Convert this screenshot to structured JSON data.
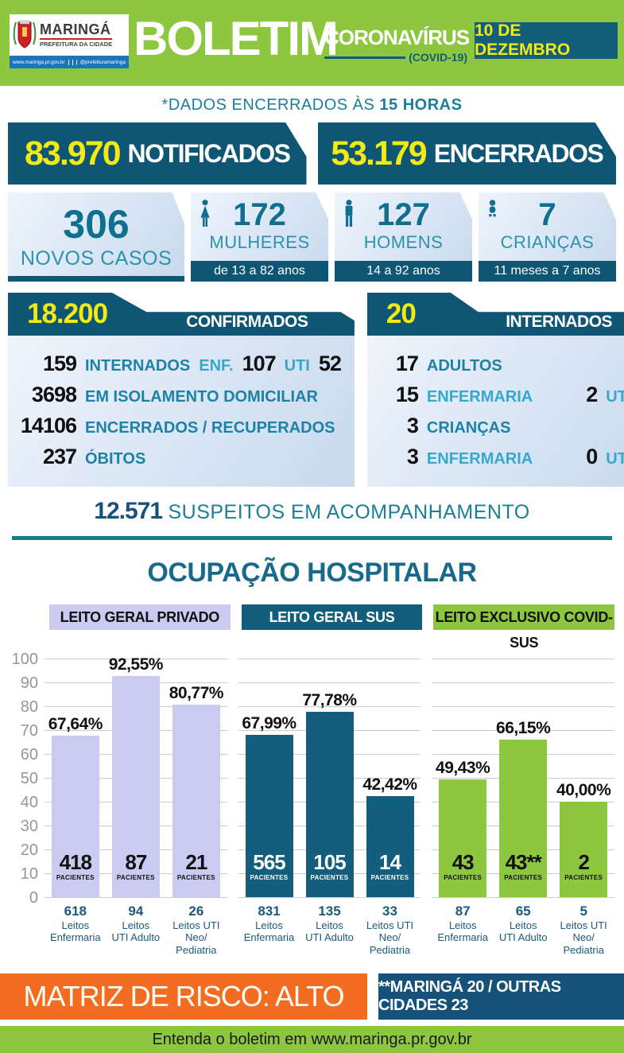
{
  "header": {
    "logo_title": "MARINGÁ",
    "logo_subtitle": "PREFEITURA DA CIDADE",
    "logo_url": "www.maringa.pr.gov.br",
    "logo_social": "@prefeituramaringa",
    "title": "BOLETIM",
    "subtitle": "CORONAVÍRUS",
    "subtitle_note": "(COVID-19)",
    "date": "10 DE DEZEMBRO"
  },
  "closing_note": {
    "prefix": "*DADOS ENCERRADOS ÀS ",
    "time": "15 HORAS"
  },
  "totals": [
    {
      "value": "83.970",
      "label": "NOTIFICADOS"
    },
    {
      "value": "53.179",
      "label": "ENCERRADOS"
    }
  ],
  "new_cases": {
    "value": "306",
    "label": "NOVOS CASOS"
  },
  "demographics": [
    {
      "icon": "woman-icon",
      "value": "172",
      "label": "MULHERES",
      "range": "de 13 a 82 anos"
    },
    {
      "icon": "man-icon",
      "value": "127",
      "label": "HOMENS",
      "range": "14 a 92 anos"
    },
    {
      "icon": "baby-icon",
      "value": "7",
      "label": "CRIANÇAS",
      "range": "11 meses a 7 anos"
    }
  ],
  "confirmed_panel": {
    "value": "18.200",
    "title": "CONFIRMADOS",
    "rows": [
      [
        {
          "t": "159",
          "c": "num first"
        },
        {
          "t": "INTERNADOS",
          "c": "dark"
        },
        {
          "t": "ENF.",
          "c": "light"
        },
        {
          "t": "107",
          "c": "num"
        },
        {
          "t": "UTI",
          "c": "light"
        },
        {
          "t": "52",
          "c": "num"
        }
      ],
      [
        {
          "t": "3698",
          "c": "num first"
        },
        {
          "t": "EM ISOLAMENTO DOMICILIAR",
          "c": "dark"
        }
      ],
      [
        {
          "t": "14106",
          "c": "num first"
        },
        {
          "t": "ENCERRADOS / RECUPERADOS",
          "c": "dark"
        }
      ],
      [
        {
          "t": "237",
          "c": "num first"
        },
        {
          "t": "ÓBITOS",
          "c": "dark"
        }
      ]
    ]
  },
  "suspects_panel": {
    "value": "20",
    "title": "SUSPEITOS INTERNADOS",
    "rows": [
      [
        {
          "t": "17",
          "c": "num first"
        },
        {
          "t": "ADULTOS",
          "c": "dark"
        }
      ],
      [
        {
          "t": "15",
          "c": "num first"
        },
        {
          "t": "ENFERMARIA",
          "c": "light"
        },
        {
          "t": "2",
          "c": "num push"
        },
        {
          "t": "UTI",
          "c": "light"
        }
      ],
      [
        {
          "t": "3",
          "c": "num first"
        },
        {
          "t": "CRIANÇAS",
          "c": "dark"
        }
      ],
      [
        {
          "t": "3",
          "c": "num first"
        },
        {
          "t": "ENFERMARIA",
          "c": "light"
        },
        {
          "t": "0",
          "c": "num push"
        },
        {
          "t": "UTI",
          "c": "light"
        }
      ]
    ]
  },
  "monitoring": {
    "value": "12.571",
    "label": " SUSPEITOS EM ACOMPANHAMENTO"
  },
  "chart_title": "OCUPAÇÃO HOSPITALAR",
  "chart_data": {
    "type": "bar",
    "title": "OCUPAÇÃO HOSPITALAR",
    "ylim": [
      0,
      100
    ],
    "ytick_step": 10,
    "grid": true,
    "patients_word": "PACIENTES",
    "groups": [
      {
        "legend": "LEITO GERAL PRIVADO",
        "bar_color": "#c9cbf0",
        "legend_text_color": "#111111",
        "patients_text_color": "#111111",
        "bars": [
          {
            "percent": 67.64,
            "percent_label": "67,64%",
            "patients": "418",
            "beds": [
              "618",
              "Leitos",
              "Enfermaria"
            ]
          },
          {
            "percent": 92.55,
            "percent_label": "92,55%",
            "patients": "87",
            "beds": [
              "94",
              "Leitos",
              "UTI Adulto"
            ]
          },
          {
            "percent": 80.77,
            "percent_label": "80,77%",
            "patients": "21",
            "beds": [
              "26",
              "Leitos UTI",
              "Neo/",
              "Pediatria"
            ]
          }
        ]
      },
      {
        "legend": "LEITO GERAL SUS",
        "bar_color": "#135e7c",
        "legend_text_color": "#ffffff",
        "patients_text_color": "#ffffff",
        "bars": [
          {
            "percent": 67.99,
            "percent_label": "67,99%",
            "patients": "565",
            "beds": [
              "831",
              "Leitos",
              "Enfermaria"
            ]
          },
          {
            "percent": 77.78,
            "percent_label": "77,78%",
            "patients": "105",
            "beds": [
              "135",
              "Leitos",
              "UTI Adulto"
            ]
          },
          {
            "percent": 42.42,
            "percent_label": "42,42%",
            "patients": "14",
            "beds": [
              "33",
              "Leitos UTI",
              "Neo/",
              "Pediatria"
            ]
          }
        ]
      },
      {
        "legend": "LEITO EXCLUSIVO COVID-SUS",
        "bar_color": "#8dc63f",
        "legend_text_color": "#111111",
        "patients_text_color": "#111111",
        "bars": [
          {
            "percent": 49.43,
            "percent_label": "49,43%",
            "patients": "43",
            "beds": [
              "87",
              "Leitos",
              "Enfermaria"
            ]
          },
          {
            "percent": 66.15,
            "percent_label": "66,15%",
            "patients": "43**",
            "beds": [
              "65",
              "Leitos",
              "UTI Adulto"
            ]
          },
          {
            "percent": 40.0,
            "percent_label": "40,00%",
            "patients": "2",
            "beds": [
              "5",
              "Leitos UTI",
              "Neo/",
              "Pediatria"
            ]
          }
        ]
      }
    ]
  },
  "footer": {
    "risk": "MATRIZ DE RISCO: ALTO",
    "note": "**MARINGÁ 20 / OUTRAS CIDADES 23",
    "bottom": "Entenda o boletim em www.maringa.pr.gov.br"
  }
}
